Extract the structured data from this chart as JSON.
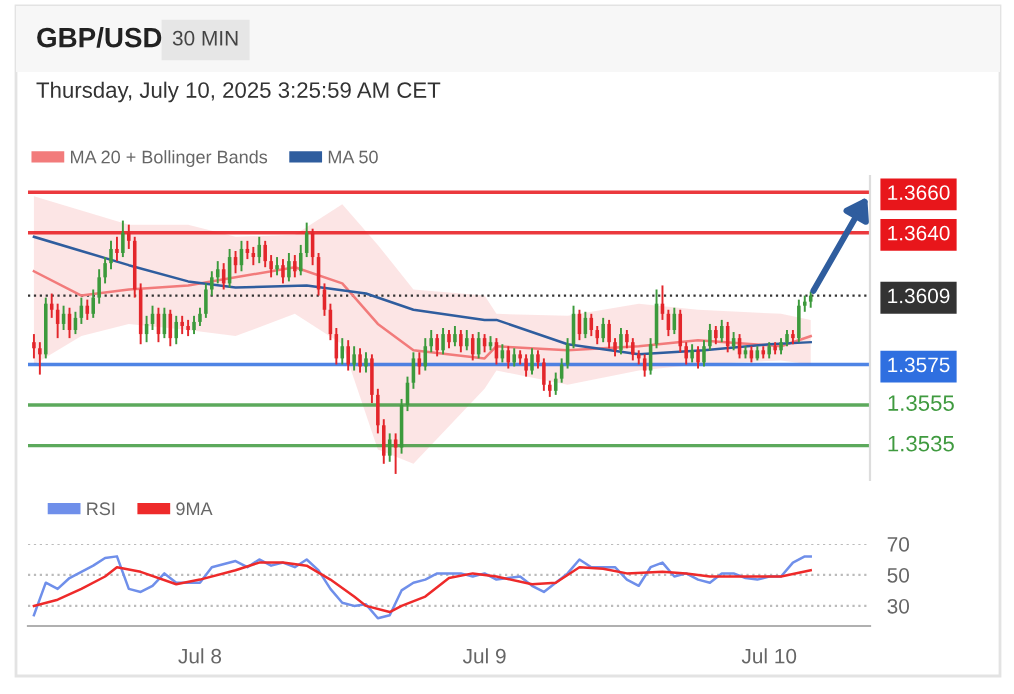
{
  "chart_data": [
    {
      "type": "candlestick",
      "title": "GBP/USD",
      "subtitle": "Thursday, July 10, 2025 3:25:59 AM CET",
      "annotations": [
        "30 MIN"
      ],
      "x": [
        "2025-07-07T10:00",
        "2025-07-07T10:30",
        "2025-07-07T11:00",
        "2025-07-07T11:30",
        "2025-07-07T12:00",
        "2025-07-07T12:30",
        "2025-07-07T13:00",
        "2025-07-07T13:30",
        "2025-07-07T14:00",
        "2025-07-07T14:30",
        "2025-07-07T15:00",
        "2025-07-07T15:30",
        "2025-07-07T16:00",
        "2025-07-07T16:30",
        "2025-07-07T17:00",
        "2025-07-07T17:30",
        "2025-07-07T18:00",
        "2025-07-07T18:30",
        "2025-07-07T19:00",
        "2025-07-07T19:30",
        "2025-07-07T20:00",
        "2025-07-07T20:30",
        "2025-07-07T21:00",
        "2025-07-07T21:30",
        "2025-07-07T22:00",
        "2025-07-07T22:30",
        "2025-07-07T23:00",
        "2025-07-07T23:30",
        "2025-07-08T00:00",
        "2025-07-08T00:30",
        "2025-07-08T01:00",
        "2025-07-08T01:30",
        "2025-07-08T02:00",
        "2025-07-08T02:30",
        "2025-07-08T03:00",
        "2025-07-08T03:30",
        "2025-07-08T04:00",
        "2025-07-08T04:30",
        "2025-07-08T05:00",
        "2025-07-08T05:30",
        "2025-07-08T06:00",
        "2025-07-08T06:30",
        "2025-07-08T07:00",
        "2025-07-08T07:30",
        "2025-07-08T08:00",
        "2025-07-08T08:30",
        "2025-07-08T09:00",
        "2025-07-08T09:30",
        "2025-07-08T10:00",
        "2025-07-08T10:30",
        "2025-07-08T11:00",
        "2025-07-08T11:30",
        "2025-07-08T12:00",
        "2025-07-08T12:30",
        "2025-07-08T13:00",
        "2025-07-08T13:30",
        "2025-07-08T14:00",
        "2025-07-08T14:30",
        "2025-07-08T15:00",
        "2025-07-08T15:30",
        "2025-07-08T16:00",
        "2025-07-08T16:30",
        "2025-07-08T17:00",
        "2025-07-08T17:30",
        "2025-07-08T18:00",
        "2025-07-08T18:30",
        "2025-07-08T19:00",
        "2025-07-08T19:30",
        "2025-07-08T20:00",
        "2025-07-08T20:30",
        "2025-07-08T21:00",
        "2025-07-08T21:30",
        "2025-07-08T22:00",
        "2025-07-08T22:30",
        "2025-07-08T23:00",
        "2025-07-08T23:30",
        "2025-07-09T00:00",
        "2025-07-09T00:30",
        "2025-07-09T01:00",
        "2025-07-09T01:30",
        "2025-07-09T02:00",
        "2025-07-09T02:30",
        "2025-07-09T03:00",
        "2025-07-09T03:30",
        "2025-07-09T04:00",
        "2025-07-09T04:30",
        "2025-07-09T05:00",
        "2025-07-09T05:30",
        "2025-07-09T06:00",
        "2025-07-09T06:30",
        "2025-07-09T07:00",
        "2025-07-09T07:30",
        "2025-07-09T08:00",
        "2025-07-09T08:30",
        "2025-07-09T09:00",
        "2025-07-09T09:30",
        "2025-07-09T10:00",
        "2025-07-09T10:30",
        "2025-07-09T11:00",
        "2025-07-09T11:30",
        "2025-07-09T12:00",
        "2025-07-09T12:30",
        "2025-07-09T13:00",
        "2025-07-09T13:30",
        "2025-07-09T14:00",
        "2025-07-09T14:30",
        "2025-07-09T15:00",
        "2025-07-09T15:30",
        "2025-07-09T16:00",
        "2025-07-09T16:30",
        "2025-07-09T17:00",
        "2025-07-09T17:30",
        "2025-07-09T18:00",
        "2025-07-09T18:30",
        "2025-07-09T19:00",
        "2025-07-09T19:30",
        "2025-07-09T20:00",
        "2025-07-09T20:30",
        "2025-07-09T21:00",
        "2025-07-09T21:30",
        "2025-07-09T22:00",
        "2025-07-09T22:30",
        "2025-07-09T23:00",
        "2025-07-09T23:30",
        "2025-07-10T00:00",
        "2025-07-10T00:30",
        "2025-07-10T01:00",
        "2025-07-10T01:30",
        "2025-07-10T02:00",
        "2025-07-10T02:30",
        "2025-07-10T03:00",
        "2025-07-10T03:30"
      ],
      "ohlc": [
        [
          1.3586,
          1.359,
          1.3578,
          1.3583
        ],
        [
          1.3583,
          1.3586,
          1.357,
          1.358
        ],
        [
          1.358,
          1.3608,
          1.3578,
          1.3605
        ],
        [
          1.3605,
          1.361,
          1.3598,
          1.3602
        ],
        [
          1.3602,
          1.3605,
          1.3588,
          1.3595
        ],
        [
          1.3595,
          1.3604,
          1.3592,
          1.36
        ],
        [
          1.36,
          1.3603,
          1.3588,
          1.3592
        ],
        [
          1.3592,
          1.3601,
          1.359,
          1.3598
        ],
        [
          1.3598,
          1.3608,
          1.3595,
          1.3604
        ],
        [
          1.3604,
          1.3607,
          1.3597,
          1.36
        ],
        [
          1.36,
          1.3612,
          1.3598,
          1.3608
        ],
        [
          1.3608,
          1.3622,
          1.3605,
          1.3618
        ],
        [
          1.3618,
          1.3628,
          1.3615,
          1.3625
        ],
        [
          1.3625,
          1.3636,
          1.3622,
          1.3632
        ],
        [
          1.3632,
          1.3638,
          1.3626,
          1.363
        ],
        [
          1.363,
          1.3646,
          1.3628,
          1.364
        ],
        [
          1.364,
          1.3644,
          1.3632,
          1.3636
        ],
        [
          1.3636,
          1.3638,
          1.3608,
          1.3612
        ],
        [
          1.3612,
          1.3615,
          1.3585,
          1.359
        ],
        [
          1.359,
          1.3599,
          1.3586,
          1.3595
        ],
        [
          1.3595,
          1.3604,
          1.3592,
          1.36
        ],
        [
          1.36,
          1.3603,
          1.3586,
          1.359
        ],
        [
          1.359,
          1.3603,
          1.3588,
          1.36
        ],
        [
          1.36,
          1.3602,
          1.3584,
          1.3588
        ],
        [
          1.3588,
          1.3599,
          1.3585,
          1.3596
        ],
        [
          1.3596,
          1.3599,
          1.359,
          1.3594
        ],
        [
          1.3594,
          1.3597,
          1.3589,
          1.3592
        ],
        [
          1.3592,
          1.3599,
          1.359,
          1.3596
        ],
        [
          1.3596,
          1.3603,
          1.3594,
          1.36
        ],
        [
          1.36,
          1.3615,
          1.3598,
          1.3612
        ],
        [
          1.3612,
          1.3621,
          1.3609,
          1.3618
        ],
        [
          1.3618,
          1.3626,
          1.3615,
          1.3622
        ],
        [
          1.3622,
          1.3625,
          1.3612,
          1.3615
        ],
        [
          1.3615,
          1.3632,
          1.3613,
          1.3628
        ],
        [
          1.3628,
          1.3631,
          1.362,
          1.3624
        ],
        [
          1.3624,
          1.3636,
          1.3621,
          1.3632
        ],
        [
          1.3632,
          1.3636,
          1.3627,
          1.363
        ],
        [
          1.363,
          1.3633,
          1.3624,
          1.3628
        ],
        [
          1.3628,
          1.3638,
          1.3625,
          1.3634
        ],
        [
          1.3634,
          1.3636,
          1.3623,
          1.3626
        ],
        [
          1.3626,
          1.3629,
          1.3618,
          1.3622
        ],
        [
          1.3622,
          1.3628,
          1.3619,
          1.3624
        ],
        [
          1.3624,
          1.3627,
          1.3615,
          1.3618
        ],
        [
          1.3618,
          1.363,
          1.3616,
          1.3626
        ],
        [
          1.3626,
          1.3629,
          1.3618,
          1.3621
        ],
        [
          1.3621,
          1.3634,
          1.3619,
          1.363
        ],
        [
          1.363,
          1.3645,
          1.3628,
          1.364
        ],
        [
          1.364,
          1.3642,
          1.3624,
          1.3628
        ],
        [
          1.3628,
          1.363,
          1.3609,
          1.3612
        ],
        [
          1.3612,
          1.3615,
          1.3599,
          1.3602
        ],
        [
          1.3602,
          1.3605,
          1.3587,
          1.359
        ],
        [
          1.359,
          1.3593,
          1.3575,
          1.3578
        ],
        [
          1.3578,
          1.3588,
          1.3575,
          1.3584
        ],
        [
          1.3584,
          1.3587,
          1.3572,
          1.3575
        ],
        [
          1.3575,
          1.3584,
          1.3572,
          1.358
        ],
        [
          1.358,
          1.3583,
          1.3571,
          1.3574
        ],
        [
          1.3574,
          1.3581,
          1.3571,
          1.3578
        ],
        [
          1.3578,
          1.358,
          1.3556,
          1.356
        ],
        [
          1.356,
          1.3563,
          1.3541,
          1.3545
        ],
        [
          1.3545,
          1.3548,
          1.3526,
          1.353
        ],
        [
          1.353,
          1.3541,
          1.3527,
          1.3538
        ],
        [
          1.3538,
          1.3541,
          1.3521,
          1.3534
        ],
        [
          1.3534,
          1.3558,
          1.3531,
          1.3555
        ],
        [
          1.3555,
          1.3569,
          1.3552,
          1.3566
        ],
        [
          1.3566,
          1.3581,
          1.3563,
          1.3578
        ],
        [
          1.3578,
          1.3581,
          1.357,
          1.3574
        ],
        [
          1.3574,
          1.3588,
          1.3572,
          1.3584
        ],
        [
          1.3584,
          1.3592,
          1.3581,
          1.3588
        ],
        [
          1.3588,
          1.359,
          1.3579,
          1.3582
        ],
        [
          1.3582,
          1.3593,
          1.358,
          1.359
        ],
        [
          1.359,
          1.3592,
          1.3583,
          1.3586
        ],
        [
          1.3586,
          1.3594,
          1.3584,
          1.359
        ],
        [
          1.359,
          1.3592,
          1.3581,
          1.3584
        ],
        [
          1.3584,
          1.3592,
          1.3582,
          1.3588
        ],
        [
          1.3588,
          1.359,
          1.3577,
          1.358
        ],
        [
          1.358,
          1.3591,
          1.3578,
          1.3588
        ],
        [
          1.3588,
          1.359,
          1.3581,
          1.3584
        ],
        [
          1.3584,
          1.3589,
          1.3582,
          1.3586
        ],
        [
          1.3586,
          1.3588,
          1.3575,
          1.3578
        ],
        [
          1.3578,
          1.3585,
          1.3576,
          1.3582
        ],
        [
          1.3582,
          1.3584,
          1.3573,
          1.3576
        ],
        [
          1.3576,
          1.3583,
          1.3574,
          1.358
        ],
        [
          1.358,
          1.3582,
          1.3575,
          1.3578
        ],
        [
          1.3578,
          1.358,
          1.3569,
          1.3572
        ],
        [
          1.3572,
          1.3583,
          1.357,
          1.358
        ],
        [
          1.358,
          1.3582,
          1.3573,
          1.3576
        ],
        [
          1.3576,
          1.3578,
          1.3562,
          1.3565
        ],
        [
          1.3565,
          1.3567,
          1.3559,
          1.3562
        ],
        [
          1.3562,
          1.3571,
          1.356,
          1.3568
        ],
        [
          1.3568,
          1.3578,
          1.3566,
          1.3575
        ],
        [
          1.3575,
          1.3588,
          1.3573,
          1.3585
        ],
        [
          1.3585,
          1.3604,
          1.3583,
          1.36
        ],
        [
          1.36,
          1.3602,
          1.3587,
          1.359
        ],
        [
          1.359,
          1.3601,
          1.3588,
          1.3598
        ],
        [
          1.3598,
          1.36,
          1.3589,
          1.3592
        ],
        [
          1.3592,
          1.3594,
          1.3585,
          1.3588
        ],
        [
          1.3588,
          1.3598,
          1.3586,
          1.3595
        ],
        [
          1.3595,
          1.3597,
          1.3583,
          1.3586
        ],
        [
          1.3586,
          1.3588,
          1.3579,
          1.3582
        ],
        [
          1.3582,
          1.3593,
          1.358,
          1.359
        ],
        [
          1.359,
          1.3592,
          1.3583,
          1.3586
        ],
        [
          1.3586,
          1.3588,
          1.3577,
          1.358
        ],
        [
          1.358,
          1.3582,
          1.3575,
          1.3578
        ],
        [
          1.3578,
          1.358,
          1.3569,
          1.3572
        ],
        [
          1.3572,
          1.3588,
          1.357,
          1.3585
        ],
        [
          1.3585,
          1.3612,
          1.3583,
          1.3605
        ],
        [
          1.3605,
          1.3614,
          1.3597,
          1.36
        ],
        [
          1.36,
          1.3602,
          1.3589,
          1.3592
        ],
        [
          1.3592,
          1.3603,
          1.359,
          1.36
        ],
        [
          1.36,
          1.3602,
          1.3581,
          1.3584
        ],
        [
          1.3584,
          1.3586,
          1.3575,
          1.3578
        ],
        [
          1.3578,
          1.3585,
          1.3576,
          1.3582
        ],
        [
          1.3582,
          1.3584,
          1.3573,
          1.3576
        ],
        [
          1.3576,
          1.3587,
          1.3574,
          1.3584
        ],
        [
          1.3584,
          1.3595,
          1.3582,
          1.3592
        ],
        [
          1.3592,
          1.3594,
          1.3585,
          1.3588
        ],
        [
          1.3588,
          1.3597,
          1.3586,
          1.3594
        ],
        [
          1.3594,
          1.3596,
          1.3581,
          1.3584
        ],
        [
          1.3584,
          1.3591,
          1.3582,
          1.3588
        ],
        [
          1.3588,
          1.359,
          1.3578,
          1.358
        ],
        [
          1.358,
          1.3584,
          1.3578,
          1.3582
        ],
        [
          1.3582,
          1.3584,
          1.3576,
          1.3578
        ],
        [
          1.3578,
          1.3584,
          1.3577,
          1.3582
        ],
        [
          1.3582,
          1.3584,
          1.3578,
          1.358
        ],
        [
          1.358,
          1.3586,
          1.3578,
          1.3584
        ],
        [
          1.3584,
          1.3586,
          1.358,
          1.3582
        ],
        [
          1.3582,
          1.3588,
          1.358,
          1.3586
        ],
        [
          1.3586,
          1.3592,
          1.3584,
          1.359
        ],
        [
          1.359,
          1.3592,
          1.3585,
          1.3588
        ],
        [
          1.3588,
          1.3607,
          1.3586,
          1.3604
        ],
        [
          1.3604,
          1.3609,
          1.3601,
          1.3606
        ],
        [
          1.3606,
          1.3611,
          1.3603,
          1.3609
        ]
      ],
      "colors": [
        "#e3262b",
        "#e3262b",
        "#3c9a3c",
        "#e3262b",
        "#e3262b",
        "#3c9a3c",
        "#e3262b",
        "#3c9a3c",
        "#3c9a3c",
        "#e3262b",
        "#3c9a3c",
        "#3c9a3c",
        "#3c9a3c",
        "#3c9a3c",
        "#e3262b",
        "#3c9a3c",
        "#e3262b",
        "#e3262b",
        "#e3262b",
        "#3c9a3c",
        "#3c9a3c",
        "#e3262b",
        "#3c9a3c",
        "#e3262b",
        "#3c9a3c",
        "#e3262b",
        "#e3262b",
        "#3c9a3c",
        "#3c9a3c",
        "#3c9a3c",
        "#3c9a3c",
        "#3c9a3c",
        "#e3262b",
        "#3c9a3c",
        "#e3262b",
        "#3c9a3c",
        "#e3262b",
        "#e3262b",
        "#3c9a3c",
        "#e3262b",
        "#e3262b",
        "#3c9a3c",
        "#e3262b",
        "#3c9a3c",
        "#e3262b",
        "#3c9a3c",
        "#3c9a3c",
        "#e3262b",
        "#e3262b",
        "#e3262b",
        "#e3262b",
        "#e3262b",
        "#3c9a3c",
        "#e3262b",
        "#3c9a3c",
        "#e3262b",
        "#3c9a3c",
        "#e3262b",
        "#e3262b",
        "#e3262b",
        "#3c9a3c",
        "#e3262b",
        "#3c9a3c",
        "#3c9a3c",
        "#3c9a3c",
        "#e3262b",
        "#3c9a3c",
        "#3c9a3c",
        "#e3262b",
        "#3c9a3c",
        "#e3262b",
        "#3c9a3c",
        "#e3262b",
        "#3c9a3c",
        "#e3262b",
        "#3c9a3c",
        "#e3262b",
        "#3c9a3c",
        "#e3262b",
        "#3c9a3c",
        "#e3262b",
        "#3c9a3c",
        "#e3262b",
        "#e3262b",
        "#3c9a3c",
        "#e3262b",
        "#e3262b",
        "#e3262b",
        "#3c9a3c",
        "#3c9a3c",
        "#3c9a3c",
        "#3c9a3c",
        "#e3262b",
        "#3c9a3c",
        "#e3262b",
        "#e3262b",
        "#3c9a3c",
        "#e3262b",
        "#e3262b",
        "#3c9a3c",
        "#e3262b",
        "#e3262b",
        "#e3262b",
        "#e3262b",
        "#3c9a3c",
        "#3c9a3c",
        "#e3262b",
        "#e3262b",
        "#3c9a3c",
        "#e3262b",
        "#e3262b",
        "#3c9a3c",
        "#e3262b",
        "#3c9a3c",
        "#3c9a3c",
        "#e3262b",
        "#3c9a3c",
        "#e3262b",
        "#3c9a3c",
        "#e3262b",
        "#3c9a3c",
        "#e3262b",
        "#3c9a3c",
        "#e3262b",
        "#3c9a3c",
        "#e3262b",
        "#3c9a3c",
        "#3c9a3c",
        "#e3262b",
        "#3c9a3c",
        "#3c9a3c",
        "#3c9a3c"
      ],
      "series": [
        {
          "type": "line",
          "name": "MA 20 + Bollinger Bands",
          "color": "#f27b7b",
          "x": [
            "2025-07-07T10:00",
            "2025-07-07T14:00",
            "2025-07-07T18:00",
            "2025-07-07T23:00",
            "2025-07-08T03:00",
            "2025-07-08T08:00",
            "2025-07-08T12:00",
            "2025-07-08T15:00",
            "2025-07-08T18:00",
            "2025-07-09T00:00",
            "2025-07-09T01:00",
            "2025-07-09T07:00",
            "2025-07-09T13:00",
            "2025-07-09T18:00",
            "2025-07-10T01:00",
            "2025-07-10T03:30"
          ],
          "values": [
            1.3621,
            1.3609,
            1.3612,
            1.3614,
            1.3618,
            1.3623,
            1.3615,
            1.3595,
            1.3582,
            1.3578,
            1.3584,
            1.3582,
            1.3584,
            1.3587,
            1.3584,
            1.3589
          ],
          "lower": [
            1.3575,
            1.3589,
            1.3595,
            1.3592,
            1.3589,
            1.36,
            1.3585,
            1.3533,
            1.3526,
            1.3563,
            1.3572,
            1.3565,
            1.3572,
            1.3575,
            1.3577,
            1.3575
          ],
          "upper": [
            1.3658,
            1.3651,
            1.3644,
            1.3644,
            1.3638,
            1.3639,
            1.3654,
            1.3634,
            1.3612,
            1.3609,
            1.36,
            1.3599,
            1.3605,
            1.3602,
            1.36,
            1.3597
          ]
        },
        {
          "type": "line",
          "name": "MA 50",
          "color": "#2f5d9e",
          "x": [
            "2025-07-07T10:00",
            "2025-07-07T14:00",
            "2025-07-07T18:00",
            "2025-07-07T23:00",
            "2025-07-08T03:00",
            "2025-07-08T09:00",
            "2025-07-08T14:00",
            "2025-07-08T18:00",
            "2025-07-09T00:00",
            "2025-07-09T01:00",
            "2025-07-09T07:00",
            "2025-07-09T13:00",
            "2025-07-09T18:30",
            "2025-07-10T00:00",
            "2025-07-10T03:30"
          ],
          "values": [
            1.3638,
            1.3631,
            1.3624,
            1.3616,
            1.3613,
            1.3614,
            1.361,
            1.3602,
            1.3597,
            1.3597,
            1.3585,
            1.358,
            1.3582,
            1.3585,
            1.3586
          ]
        }
      ],
      "xlim": [
        "2025-07-07T09:30",
        "2025-07-10T08:30"
      ],
      "ylim": [
        1.3518,
        1.3668
      ],
      "yticks": [
        {
          "value": 1.366,
          "label": "1.3660"
        },
        {
          "value": 1.364,
          "label": "1.3640"
        },
        {
          "value": 1.3609,
          "label": "1.3609"
        },
        {
          "value": 1.3575,
          "label": "1.3575"
        }
      ],
      "tick_labels": "y",
      "ref_lines": [
        {
          "axis": "y",
          "value": 1.366,
          "color": "#e8161b"
        },
        {
          "axis": "y",
          "value": 1.364,
          "color": "#e8161b"
        },
        {
          "axis": "y",
          "value": 1.3609,
          "color": "#333333",
          "line_style": "dotted"
        },
        {
          "axis": "y",
          "value": 1.3575,
          "color": "#2f6fe0"
        },
        {
          "axis": "y",
          "value": 1.3555,
          "color": "#3f9a3f",
          "label": "1.3555"
        },
        {
          "axis": "y",
          "value": 1.3535,
          "color": "#3f9a3f",
          "label": "1.3535"
        }
      ],
      "legend": "top left",
      "grid": false
    },
    {
      "type": "line",
      "series": [
        {
          "name": "RSI",
          "color": "#6f8fea",
          "x": [
            "2025-07-07T10:00",
            "2025-07-07T11:00",
            "2025-07-07T12:00",
            "2025-07-07T13:00",
            "2025-07-07T14:00",
            "2025-07-07T15:00",
            "2025-07-07T16:00",
            "2025-07-07T17:00",
            "2025-07-07T18:00",
            "2025-07-07T19:00",
            "2025-07-07T20:00",
            "2025-07-07T21:00",
            "2025-07-07T22:00",
            "2025-07-08T00:00",
            "2025-07-08T01:00",
            "2025-07-08T03:00",
            "2025-07-08T04:00",
            "2025-07-08T05:00",
            "2025-07-08T06:00",
            "2025-07-08T07:00",
            "2025-07-08T08:00",
            "2025-07-08T09:00",
            "2025-07-08T10:00",
            "2025-07-08T11:00",
            "2025-07-08T12:00",
            "2025-07-08T13:00",
            "2025-07-08T14:00",
            "2025-07-08T15:00",
            "2025-07-08T16:00",
            "2025-07-08T17:00",
            "2025-07-08T18:00",
            "2025-07-08T19:00",
            "2025-07-08T20:00",
            "2025-07-08T22:00",
            "2025-07-08T23:00",
            "2025-07-09T00:00",
            "2025-07-09T01:00",
            "2025-07-09T03:00",
            "2025-07-09T04:00",
            "2025-07-09T05:00",
            "2025-07-09T06:00",
            "2025-07-09T07:00",
            "2025-07-09T08:00",
            "2025-07-09T09:00",
            "2025-07-09T10:00",
            "2025-07-09T11:00",
            "2025-07-09T12:00",
            "2025-07-09T13:00",
            "2025-07-09T14:00",
            "2025-07-09T15:00",
            "2025-07-09T16:00",
            "2025-07-09T17:00",
            "2025-07-09T18:00",
            "2025-07-09T19:00",
            "2025-07-09T20:00",
            "2025-07-09T21:00",
            "2025-07-09T22:00",
            "2025-07-09T23:00",
            "2025-07-10T00:00",
            "2025-07-10T01:00",
            "2025-07-10T02:00",
            "2025-07-10T03:00",
            "2025-07-10T03:30"
          ],
          "values": [
            24,
            45,
            41,
            48,
            52,
            56,
            61,
            62,
            41,
            39,
            43,
            51,
            45,
            45,
            55,
            59,
            55,
            60,
            56,
            58,
            55,
            60,
            53,
            41,
            32,
            30,
            31,
            22,
            24,
            40,
            45,
            47,
            51,
            51,
            49,
            51,
            47,
            49,
            43,
            39,
            45,
            51,
            60,
            55,
            55,
            55,
            47,
            43,
            55,
            58,
            49,
            51,
            47,
            45,
            51,
            51,
            48,
            47,
            49,
            49,
            58,
            62,
            62
          ]
        },
        {
          "name": "9MA",
          "color": "#ee2a2a",
          "x": [
            "2025-07-07T10:00",
            "2025-07-07T12:00",
            "2025-07-07T14:00",
            "2025-07-07T16:00",
            "2025-07-07T17:00",
            "2025-07-07T19:00",
            "2025-07-07T22:00",
            "2025-07-08T00:00",
            "2025-07-08T03:00",
            "2025-07-08T05:00",
            "2025-07-08T07:00",
            "2025-07-08T09:00",
            "2025-07-08T11:00",
            "2025-07-08T13:00",
            "2025-07-08T14:00",
            "2025-07-08T16:00",
            "2025-07-08T17:00",
            "2025-07-08T19:00",
            "2025-07-08T21:00",
            "2025-07-08T23:00",
            "2025-07-09T01:00",
            "2025-07-09T04:00",
            "2025-07-09T06:00",
            "2025-07-09T08:00",
            "2025-07-09T10:00",
            "2025-07-09T12:00",
            "2025-07-09T15:00",
            "2025-07-09T17:00",
            "2025-07-09T19:00",
            "2025-07-09T23:00",
            "2025-07-10T01:00",
            "2025-07-10T03:30"
          ],
          "values": [
            30,
            34,
            41,
            49,
            55,
            52,
            44,
            47,
            53,
            58,
            58,
            56,
            47,
            36,
            30,
            26,
            30,
            36,
            48,
            51,
            49,
            44,
            45,
            55,
            54,
            51,
            52,
            51,
            49,
            49,
            49,
            53
          ]
        }
      ],
      "xlim": [
        "2025-07-07T09:30",
        "2025-07-10T08:30"
      ],
      "ylim": [
        17,
        70
      ],
      "yticks": [
        30,
        50,
        70
      ],
      "xticks": [
        {
          "value": "2025-07-08",
          "label": "Jul 8"
        },
        {
          "value": "2025-07-09",
          "label": "Jul 9"
        },
        {
          "value": "2025-07-10",
          "label": "Jul 10"
        }
      ],
      "grid": "y",
      "legend": "top left"
    }
  ]
}
